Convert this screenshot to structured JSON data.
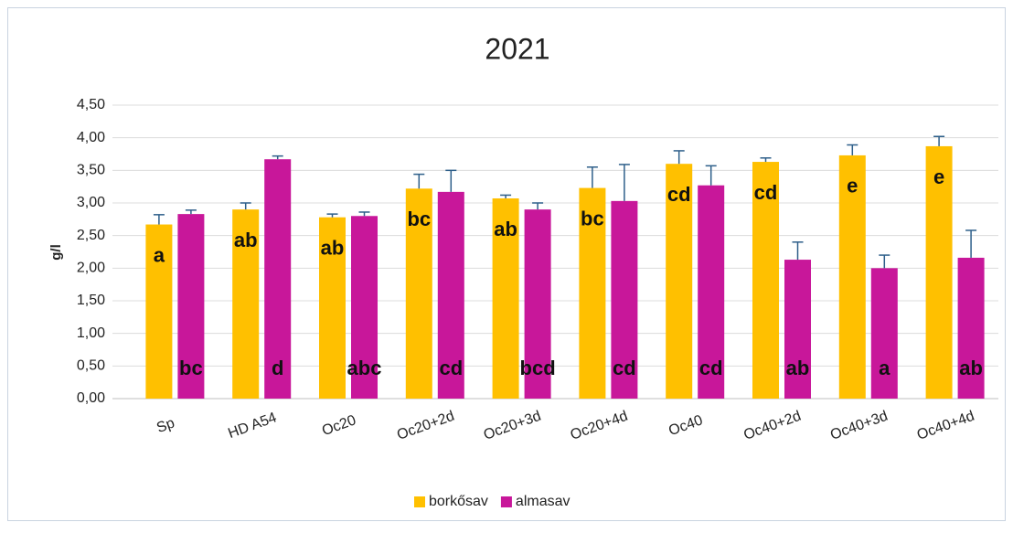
{
  "chart_data": {
    "type": "bar",
    "title": "2021",
    "y_label": "g/l",
    "categories": [
      "Sp",
      "HD A54",
      "Oc20",
      "Oc20+2d",
      "Oc20+3d",
      "Oc20+4d",
      "Oc40",
      "Oc40+2d",
      "Oc40+3d",
      "Oc40+4d"
    ],
    "series": [
      {
        "name": "borkősav",
        "color": "#ffc000",
        "values": [
          2.67,
          2.9,
          2.78,
          3.22,
          3.07,
          3.23,
          3.6,
          3.63,
          3.73,
          3.87
        ],
        "errors": [
          0.15,
          0.1,
          0.05,
          0.22,
          0.05,
          0.32,
          0.2,
          0.06,
          0.16,
          0.15
        ],
        "letters": [
          "a",
          "ab",
          "ab",
          "bc",
          "ab",
          "bc",
          "cd",
          "cd",
          "e",
          "e"
        ]
      },
      {
        "name": "almasav",
        "color": "#c8179a",
        "values": [
          2.83,
          3.67,
          2.8,
          3.17,
          2.9,
          3.03,
          3.27,
          2.13,
          2.0,
          2.16
        ],
        "errors": [
          0.06,
          0.05,
          0.06,
          0.33,
          0.1,
          0.56,
          0.3,
          0.27,
          0.2,
          0.42
        ],
        "letters": [
          "bc",
          "d",
          "abc",
          "cd",
          "bcd",
          "cd",
          "cd",
          "ab",
          "a",
          "ab"
        ]
      }
    ],
    "ylim": [
      0,
      4.5
    ],
    "yticks": [
      {
        "value": 0,
        "label": "0,00"
      },
      {
        "value": 0.5,
        "label": "0,50"
      },
      {
        "value": 1,
        "label": "1,00"
      },
      {
        "value": 1.5,
        "label": "1,50"
      },
      {
        "value": 2,
        "label": "2,00"
      },
      {
        "value": 2.5,
        "label": "2,50"
      },
      {
        "value": 3,
        "label": "3,00"
      },
      {
        "value": 3.5,
        "label": "3,50"
      },
      {
        "value": 4,
        "label": "4,00"
      },
      {
        "value": 4.5,
        "label": "4,50"
      }
    ],
    "grid": true,
    "legend": "bottom",
    "error_color": "#2e5f8a"
  }
}
